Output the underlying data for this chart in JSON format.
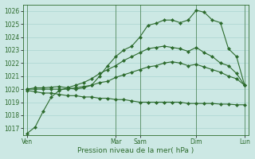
{
  "background_color": "#cce8e4",
  "grid_color": "#b0d8d4",
  "line_color": "#2d6b2d",
  "xlabel": "Pression niveau de la mer( hPa )",
  "ylim": [
    1016.5,
    1026.5
  ],
  "yticks": [
    1017,
    1018,
    1019,
    1020,
    1021,
    1022,
    1023,
    1024,
    1025,
    1026
  ],
  "series1": [
    1016.6,
    1017.1,
    1018.3,
    1019.4,
    1019.9,
    1020.1,
    1020.0,
    1020.1,
    1020.3,
    1021.0,
    1021.8,
    1022.5,
    1023.0,
    1023.3,
    1024.0,
    1024.9,
    1025.05,
    1025.3,
    1025.3,
    1025.1,
    1025.3,
    1026.05,
    1025.9,
    1025.3,
    1025.1,
    1023.1,
    1022.5,
    1020.3
  ],
  "series2": [
    1020.0,
    1020.1,
    1020.1,
    1020.15,
    1020.2,
    1020.1,
    1020.3,
    1020.5,
    1020.8,
    1021.2,
    1021.5,
    1021.8,
    1022.2,
    1022.5,
    1022.8,
    1023.1,
    1023.2,
    1023.3,
    1023.2,
    1023.1,
    1022.9,
    1023.2,
    1022.8,
    1022.5,
    1022.0,
    1021.8,
    1021.2,
    1020.3
  ],
  "series3": [
    1020.0,
    1020.0,
    1020.0,
    1020.0,
    1020.0,
    1020.0,
    1020.1,
    1020.2,
    1020.3,
    1020.5,
    1020.6,
    1020.9,
    1021.1,
    1021.3,
    1021.5,
    1021.7,
    1021.8,
    1022.0,
    1022.1,
    1022.0,
    1021.8,
    1021.9,
    1021.7,
    1021.5,
    1021.3,
    1021.0,
    1020.8,
    1020.3
  ],
  "series4": [
    1019.9,
    1019.8,
    1019.7,
    1019.7,
    1019.6,
    1019.5,
    1019.5,
    1019.4,
    1019.4,
    1019.3,
    1019.3,
    1019.2,
    1019.2,
    1019.1,
    1019.0,
    1019.0,
    1019.0,
    1019.0,
    1019.0,
    1019.0,
    1018.9,
    1018.9,
    1018.9,
    1018.9,
    1018.85,
    1018.85,
    1018.8,
    1018.8
  ],
  "n_points": 28,
  "xtick_positions": [
    0,
    11,
    14,
    21,
    27
  ],
  "xtick_labels": [
    "Ven",
    "Mar",
    "Sam",
    "Dim",
    "Lun"
  ],
  "vline_positions": [
    0,
    11,
    14,
    21,
    27
  ]
}
